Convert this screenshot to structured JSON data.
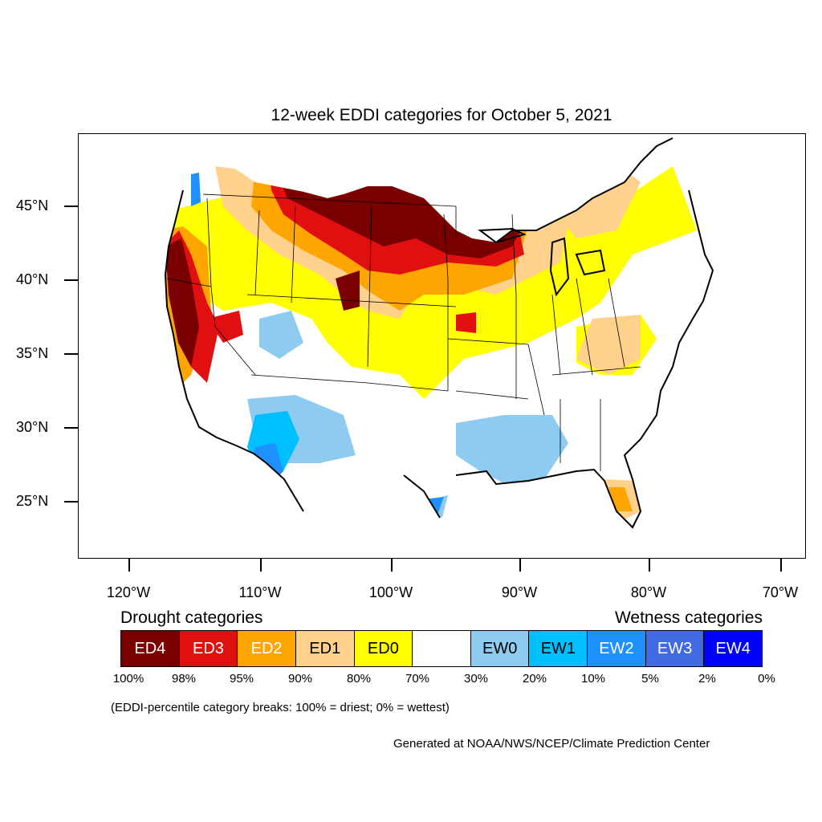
{
  "title": "12-week EDDI categories for October 5, 2021",
  "lat_labels": [
    "45°N",
    "40°N",
    "35°N",
    "30°N",
    "25°N"
  ],
  "lon_labels": [
    "120°W",
    "110°W",
    "100°W",
    "90°W",
    "80°W",
    "70°W"
  ],
  "legend": {
    "drought_heading": "Drought categories",
    "wetness_heading": "Wetness categories",
    "categories": [
      {
        "label": "ED4",
        "color": "#7a0000",
        "text_color": "#ffffff"
      },
      {
        "label": "ED3",
        "color": "#e01010",
        "text_color": "#ffffff"
      },
      {
        "label": "ED2",
        "color": "#ffa500",
        "text_color": "#ffffff"
      },
      {
        "label": "ED1",
        "color": "#ffd18c",
        "text_color": "#000000"
      },
      {
        "label": "ED0",
        "color": "#ffff00",
        "text_color": "#000000"
      },
      {
        "label": "",
        "color": "#ffffff",
        "text_color": "#000000"
      },
      {
        "label": "EW0",
        "color": "#8ecbf0",
        "text_color": "#000000"
      },
      {
        "label": "EW1",
        "color": "#00bfff",
        "text_color": "#000000"
      },
      {
        "label": "EW2",
        "color": "#1e90ff",
        "text_color": "#ffffff"
      },
      {
        "label": "EW3",
        "color": "#4169e1",
        "text_color": "#ffffff"
      },
      {
        "label": "EW4",
        "color": "#0000ff",
        "text_color": "#ffffff"
      }
    ],
    "breaks": [
      "100%",
      "98%",
      "95%",
      "90%",
      "80%",
      "70%",
      "30%",
      "20%",
      "10%",
      "5%",
      "2%",
      "0%"
    ]
  },
  "note": "(EDDI-percentile category breaks: 100% = driest; 0% = wettest)",
  "credit": "Generated at NOAA/NWS/NCEP/Climate Prediction Center"
}
